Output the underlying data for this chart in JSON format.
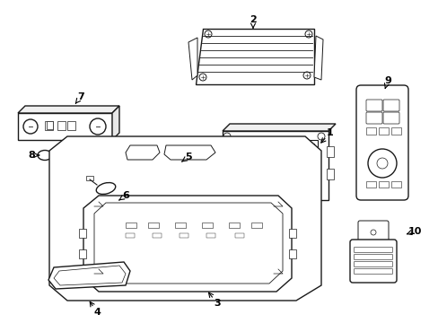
{
  "background_color": "#ffffff",
  "line_color": "#1a1a1a",
  "line_width": 1.0,
  "figsize": [
    4.89,
    3.6
  ],
  "dpi": 100,
  "labels": [
    [
      1,
      368,
      148,
      355,
      162
    ],
    [
      2,
      282,
      22,
      282,
      35
    ],
    [
      3,
      242,
      338,
      230,
      323
    ],
    [
      4,
      108,
      348,
      98,
      333
    ],
    [
      5,
      210,
      175,
      200,
      182
    ],
    [
      6,
      140,
      218,
      130,
      225
    ],
    [
      7,
      90,
      108,
      82,
      118
    ],
    [
      8,
      35,
      173,
      44,
      173
    ],
    [
      9,
      432,
      90,
      428,
      102
    ],
    [
      10,
      462,
      258,
      450,
      262
    ]
  ]
}
